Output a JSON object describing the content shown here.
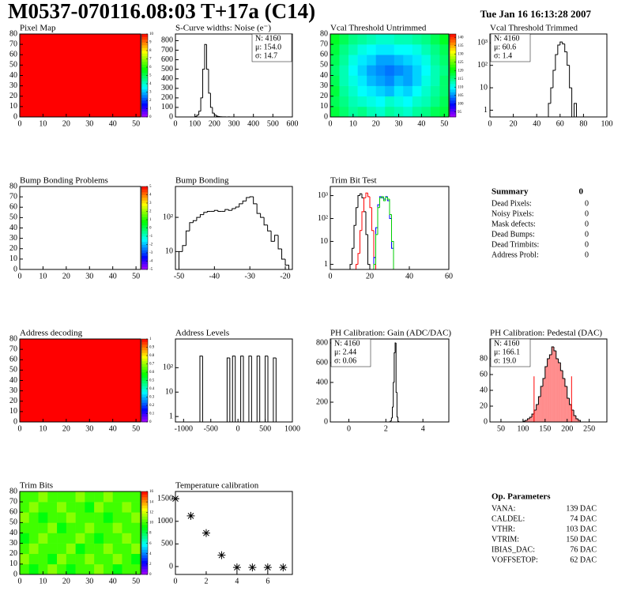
{
  "header": {
    "title": "M0537-070116.08:03 T+17a (C14)",
    "date": "Tue Jan 16 16:13:28 2007"
  },
  "chart_data": [
    {
      "type": "heatmap",
      "title": "Pixel Map",
      "xlim": [
        0,
        52
      ],
      "ylim": [
        0,
        80
      ],
      "xticks": [
        0,
        10,
        20,
        30,
        40,
        50
      ],
      "yticks": [
        0,
        10,
        20,
        30,
        40,
        50,
        60,
        70,
        80
      ],
      "zlim": [
        0,
        10
      ],
      "zticks": [
        0,
        1,
        2,
        3,
        4,
        5,
        6,
        7,
        8,
        9,
        10
      ],
      "colormap": "rainbow",
      "z": [
        [
          10
        ]
      ]
    },
    {
      "type": "histogram",
      "title": "S-Curve widths: Noise (e⁻)",
      "xlim": [
        0,
        600
      ],
      "ylim": [
        0,
        870
      ],
      "xticks": [
        0,
        100,
        200,
        300,
        400,
        500,
        600
      ],
      "yticks": [
        0,
        100,
        200,
        300,
        400,
        500,
        600,
        700,
        800
      ],
      "color": "#000000",
      "stats": [
        "N: 4160",
        "μ: 154.0",
        "σ: 14.7"
      ],
      "stats_corner": "right",
      "bins": [
        100,
        110,
        120,
        130,
        140,
        150,
        160,
        170,
        180,
        190,
        200,
        210,
        220,
        230,
        240,
        250,
        260,
        270,
        280,
        290,
        300
      ],
      "values": [
        5,
        20,
        60,
        200,
        500,
        760,
        500,
        250,
        100,
        40,
        20,
        8,
        4,
        2,
        1,
        1,
        0,
        1,
        0,
        0
      ]
    },
    {
      "type": "heatmap",
      "title": "Vcal Threshold Untrimmed",
      "xlim": [
        0,
        52
      ],
      "ylim": [
        0,
        80
      ],
      "xticks": [
        0,
        10,
        20,
        30,
        40,
        50
      ],
      "yticks": [
        0,
        10,
        20,
        30,
        40,
        50,
        60,
        70,
        80
      ],
      "zlim": [
        92,
        142
      ],
      "zticks": [
        95,
        100,
        105,
        110,
        115,
        120,
        125,
        130,
        135,
        140
      ],
      "colormap": "rainbow",
      "z": [
        [
          118,
          116,
          114,
          115,
          113,
          112,
          114,
          113,
          112,
          114,
          115,
          117,
          118
        ],
        [
          117,
          115,
          113,
          112,
          111,
          110,
          112,
          111,
          110,
          112,
          113,
          115,
          117
        ],
        [
          118,
          114,
          112,
          110,
          109,
          108,
          107,
          109,
          108,
          110,
          112,
          114,
          116
        ],
        [
          117,
          113,
          111,
          109,
          107,
          106,
          105,
          107,
          106,
          108,
          111,
          113,
          116
        ],
        [
          116,
          113,
          110,
          108,
          106,
          105,
          104,
          105,
          106,
          108,
          110,
          113,
          115
        ],
        [
          117,
          114,
          111,
          109,
          108,
          106,
          106,
          107,
          108,
          109,
          111,
          114,
          116
        ],
        [
          118,
          115,
          113,
          111,
          110,
          109,
          109,
          110,
          110,
          111,
          113,
          115,
          117
        ],
        [
          119,
          117,
          115,
          114,
          113,
          112,
          112,
          113,
          113,
          114,
          115,
          117,
          119
        ]
      ]
    },
    {
      "type": "histogram",
      "title": "Vcal Threshold Trimmed",
      "log_y": true,
      "xlim": [
        0,
        100
      ],
      "ylim": [
        0.5,
        2500
      ],
      "xticks": [
        0,
        20,
        40,
        60,
        80,
        100
      ],
      "yticks": [
        1,
        10,
        {
          "value": 100,
          "label": "10²"
        },
        {
          "value": 1000,
          "label": "10³"
        }
      ],
      "color": "#000000",
      "stats": [
        "N: 4160",
        "μ: 60.6",
        "σ:  1.4"
      ],
      "stats_corner": "left",
      "bins": [
        50,
        52,
        54,
        56,
        58,
        60,
        62,
        64,
        66,
        68,
        70,
        72,
        74
      ],
      "values": [
        2,
        10,
        60,
        300,
        800,
        1100,
        900,
        400,
        100,
        10,
        0,
        2
      ]
    },
    {
      "type": "heatmap",
      "title": "Bump Bonding Problems",
      "xlim": [
        0,
        52
      ],
      "ylim": [
        0,
        80
      ],
      "xticks": [
        0,
        10,
        20,
        30,
        40,
        50
      ],
      "yticks": [
        0,
        10,
        20,
        30,
        40,
        50,
        60,
        70,
        80
      ],
      "zlim": [
        -5,
        5
      ],
      "zticks": [
        -5,
        -4,
        -3,
        -2,
        -1,
        0,
        1,
        2,
        3,
        4,
        5
      ],
      "colormap": "rainbow",
      "z": []
    },
    {
      "type": "histogram",
      "title": "Bump Bonding",
      "log_y": true,
      "xlim": [
        -51,
        -18
      ],
      "ylim": [
        3,
        800
      ],
      "xticks": [
        -50,
        -40,
        -30,
        -20
      ],
      "yticks": [
        10,
        {
          "value": 100,
          "label": "10²"
        }
      ],
      "color": "#000000",
      "bins": [
        -50,
        -49,
        -48,
        -47,
        -46,
        -45,
        -44,
        -43,
        -42,
        -41,
        -40,
        -39,
        -38,
        -37,
        -36,
        -35,
        -34,
        -33,
        -32,
        -31,
        -30,
        -29,
        -28,
        -27,
        -26,
        -25,
        -24,
        -23,
        -22,
        -21,
        -20,
        -19
      ],
      "values": [
        10,
        15,
        40,
        70,
        80,
        100,
        120,
        140,
        150,
        150,
        160,
        150,
        150,
        170,
        160,
        180,
        200,
        250,
        300,
        380,
        400,
        250,
        130,
        100,
        60,
        40,
        20,
        30,
        12,
        6,
        4
      ]
    },
    {
      "type": "multi_histogram",
      "title": "Trim Bit Test",
      "log_y": true,
      "xlim": [
        0,
        60
      ],
      "ylim": [
        0.6,
        2500
      ],
      "xticks": [
        0,
        20,
        40,
        60
      ],
      "yticks": [
        1,
        10,
        {
          "value": 100,
          "label": "10²"
        },
        {
          "value": 1000,
          "label": "10³"
        }
      ],
      "series": [
        {
          "color": "#000000",
          "bins": [
            10,
            11,
            12,
            13,
            14,
            15,
            16,
            17,
            18,
            19,
            20
          ],
          "values": [
            1,
            5,
            50,
            300,
            1000,
            1200,
            800,
            200,
            20,
            1
          ]
        },
        {
          "color": "#ff0000",
          "bins": [
            13,
            14,
            15,
            16,
            17,
            18,
            19,
            20,
            21,
            22,
            23
          ],
          "values": [
            1,
            3,
            30,
            200,
            800,
            1300,
            900,
            300,
            30,
            2
          ]
        },
        {
          "color": "#0000ff",
          "bins": [
            22,
            23,
            24,
            25,
            26,
            27,
            28,
            29,
            30,
            31,
            32
          ],
          "values": [
            2,
            40,
            400,
            900,
            800,
            700,
            900,
            600,
            100,
            5
          ]
        },
        {
          "color": "#00cc00",
          "bins": [
            22,
            23,
            24,
            25,
            26,
            27,
            28,
            29,
            30,
            31,
            32
          ],
          "values": [
            1,
            20,
            300,
            800,
            900,
            600,
            850,
            700,
            150,
            10
          ]
        }
      ]
    },
    {
      "type": "heatmap",
      "title": "Address decoding",
      "xlim": [
        0,
        52
      ],
      "ylim": [
        0,
        80
      ],
      "xticks": [
        0,
        10,
        20,
        30,
        40,
        50
      ],
      "yticks": [
        0,
        10,
        20,
        30,
        40,
        50,
        60,
        70,
        80
      ],
      "zlim": [
        0,
        1
      ],
      "zticks": [
        0,
        0.1,
        0.2,
        0.3,
        0.4,
        0.5,
        0.6,
        0.7,
        0.8,
        0.9,
        1
      ],
      "colormap": "rainbow",
      "z": [
        [
          1
        ]
      ]
    },
    {
      "type": "histogram",
      "title": "Address Levels",
      "log_y": true,
      "xlim": [
        -1150,
        1000
      ],
      "ylim": [
        0.6,
        1500
      ],
      "xticks": [
        -1000,
        -500,
        0,
        500,
        1000
      ],
      "yticks": [
        1,
        10,
        {
          "value": 100,
          "label": "10²"
        }
      ],
      "color": "#000000",
      "bins": [
        -750,
        -700,
        -650,
        -600,
        -550,
        -500,
        -450,
        -400,
        -350,
        -300,
        -250,
        -200,
        -150,
        -100,
        -50,
        0,
        50,
        100,
        150,
        200,
        250,
        300,
        350,
        400,
        450,
        500,
        550,
        600,
        650,
        700,
        750
      ],
      "values": [
        0,
        300,
        0,
        0,
        0,
        0,
        0,
        0,
        0,
        0,
        0,
        250,
        0,
        300,
        0,
        0,
        300,
        0,
        0,
        300,
        0,
        0,
        300,
        0,
        0,
        300,
        0,
        0,
        250,
        0
      ]
    },
    {
      "type": "histogram",
      "title": "PH Calibration: Gain (ADC/DAC)",
      "xlim": [
        -1,
        5.4
      ],
      "ylim": [
        0,
        840
      ],
      "xticks": [
        0,
        2,
        4
      ],
      "yticks": [
        0,
        200,
        400,
        600,
        800
      ],
      "color": "#000000",
      "stats": [
        "N: 4160",
        "μ: 2.44",
        "σ: 0.06"
      ],
      "stats_corner": "left",
      "bins": [
        2.2,
        2.25,
        2.3,
        2.35,
        2.4,
        2.45,
        2.5,
        2.55,
        2.6,
        2.65,
        2.7
      ],
      "values": [
        2,
        10,
        40,
        150,
        400,
        700,
        800,
        300,
        50,
        5
      ]
    },
    {
      "type": "histogram",
      "title": "PH Calibration: Pedestal (DAC)",
      "xlim": [
        25,
        290
      ],
      "ylim": [
        0,
        105
      ],
      "xticks": [
        50,
        100,
        150,
        200,
        250
      ],
      "yticks": [
        0,
        20,
        40,
        60,
        80
      ],
      "color": "#000000",
      "fill": "#ff0000",
      "stats": [
        "N: 4160",
        "μ: 166.1",
        "σ: 19.0"
      ],
      "stats_colors": [
        "#000000",
        "#ff0000",
        "#ff0000"
      ],
      "stats_corner": "left",
      "markers": [
        125,
        210
      ],
      "marker_color": "#ff0000",
      "bins": [
        100,
        105,
        110,
        115,
        120,
        125,
        130,
        135,
        140,
        145,
        150,
        155,
        160,
        165,
        170,
        175,
        180,
        185,
        190,
        195,
        200,
        205,
        210,
        215,
        220,
        225,
        230
      ],
      "values": [
        1,
        2,
        4,
        6,
        10,
        15,
        22,
        32,
        45,
        55,
        70,
        80,
        85,
        95,
        90,
        80,
        75,
        65,
        55,
        45,
        30,
        22,
        15,
        8,
        4,
        2
      ]
    },
    {
      "type": "heatmap",
      "title": "Trim Bits",
      "xlim": [
        0,
        52
      ],
      "ylim": [
        0,
        80
      ],
      "xticks": [
        0,
        10,
        20,
        30,
        40,
        50
      ],
      "yticks": [
        0,
        10,
        20,
        30,
        40,
        50,
        60,
        70,
        80
      ],
      "zlim": [
        0,
        16
      ],
      "zticks": [
        0,
        2,
        4,
        6,
        8,
        10,
        12,
        14,
        16
      ],
      "colormap": "rainbow",
      "z": [
        [
          10,
          9,
          10,
          11,
          10,
          9,
          10,
          10,
          11,
          10,
          9,
          10,
          10
        ],
        [
          11,
          10,
          10,
          9,
          11,
          10,
          10,
          11,
          10,
          10,
          11,
          10,
          9
        ],
        [
          10,
          11,
          10,
          10,
          10,
          11,
          9,
          10,
          10,
          11,
          10,
          10,
          11
        ],
        [
          9,
          10,
          11,
          10,
          10,
          10,
          11,
          10,
          9,
          10,
          10,
          11,
          10
        ],
        [
          10,
          10,
          10,
          11,
          9,
          10,
          10,
          11,
          10,
          10,
          11,
          10,
          10
        ],
        [
          11,
          10,
          9,
          10,
          10,
          11,
          10,
          10,
          10,
          9,
          10,
          10,
          11
        ],
        [
          10,
          11,
          10,
          10,
          11,
          10,
          10,
          9,
          11,
          10,
          10,
          11,
          10
        ],
        [
          10,
          10,
          11,
          10,
          10,
          10,
          11,
          10,
          10,
          11,
          10,
          10,
          10
        ]
      ]
    },
    {
      "type": "scatter",
      "title": "Temperature calibration",
      "xlim": [
        0,
        7.6
      ],
      "ylim": [
        -175,
        1660
      ],
      "xticks": [
        0,
        2,
        4,
        6
      ],
      "yticks": [
        0,
        500,
        1000,
        1500
      ],
      "color": "#000000",
      "x": [
        0,
        1,
        2,
        3,
        4,
        5,
        6,
        7
      ],
      "values": [
        1500,
        1120,
        740,
        250,
        -20,
        -20,
        -20,
        -20
      ]
    }
  ],
  "summary": {
    "title": "Summary",
    "value": "0",
    "rows": [
      [
        "Dead Pixels:",
        "0"
      ],
      [
        "Noisy Pixels:",
        "0"
      ],
      [
        "Mask defects:",
        "0"
      ],
      [
        "Dead Bumps:",
        "0"
      ],
      [
        "Dead Trimbits:",
        "0"
      ],
      [
        "Address Probl:",
        "0"
      ]
    ]
  },
  "op_parameters": {
    "title": "Op. Parameters",
    "rows": [
      [
        "VANA:",
        "139 DAC"
      ],
      [
        "CALDEL:",
        "74 DAC"
      ],
      [
        "VTHR:",
        "103 DAC"
      ],
      [
        "VTRIM:",
        "150 DAC"
      ],
      [
        "IBIAS_DAC:",
        "76 DAC"
      ],
      [
        "VOFFSETOP:",
        "62 DAC"
      ]
    ]
  }
}
